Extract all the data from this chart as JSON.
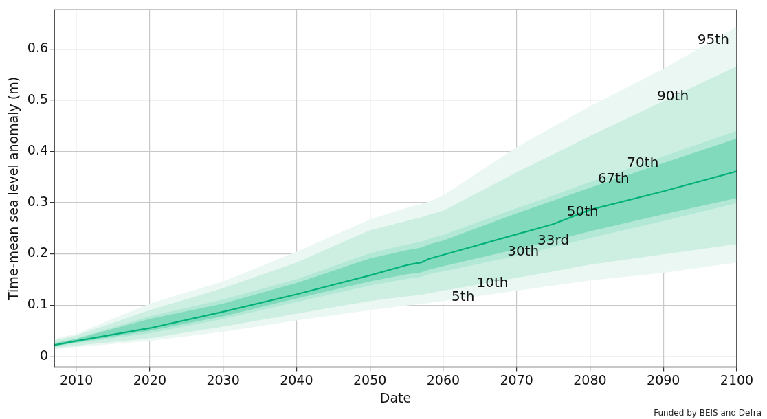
{
  "chart_data": {
    "type": "line",
    "xlabel": "Date",
    "ylabel": "Time-mean sea level anomaly (m)",
    "x": [
      2007,
      2010,
      2020,
      2030,
      2040,
      2050,
      2055,
      2057,
      2058,
      2060,
      2070,
      2075,
      2080,
      2090,
      2100
    ],
    "xlim": [
      2007,
      2100
    ],
    "xticks": [
      2010,
      2020,
      2030,
      2040,
      2050,
      2060,
      2070,
      2080,
      2090,
      2100
    ],
    "ylim": [
      -0.021,
      0.676
    ],
    "yticks": [
      0.0,
      0.1,
      0.2,
      0.3,
      0.4,
      0.5,
      0.6
    ],
    "grid": true,
    "legend": false,
    "marker": "none",
    "line_style": "solid",
    "series": [
      {
        "type": "area",
        "color": "#ebf7f2",
        "x": [
          2007,
          2010,
          2020,
          2030,
          2040,
          2050,
          2055,
          2057,
          2058,
          2060,
          2070,
          2075,
          2080,
          2090,
          2100,
          2100,
          2090,
          2080,
          2075,
          2070,
          2060,
          2058,
          2057,
          2055,
          2050,
          2040,
          2030,
          2020,
          2010,
          2007
        ],
        "values": [
          0.034,
          0.044,
          0.103,
          0.146,
          0.204,
          0.267,
          0.29,
          0.297,
          0.302,
          0.314,
          0.408,
          0.448,
          0.488,
          0.561,
          0.643,
          0.183,
          0.163,
          0.148,
          0.138,
          0.128,
          0.108,
          0.104,
          0.102,
          0.099,
          0.09,
          0.07,
          0.048,
          0.03,
          0.018,
          0.014
        ]
      },
      {
        "type": "area",
        "color": "#ccefe2",
        "x": [
          2007,
          2010,
          2020,
          2030,
          2040,
          2050,
          2055,
          2057,
          2058,
          2060,
          2070,
          2075,
          2080,
          2090,
          2100,
          2100,
          2090,
          2080,
          2075,
          2070,
          2060,
          2058,
          2057,
          2055,
          2050,
          2040,
          2030,
          2020,
          2010,
          2007
        ],
        "values": [
          0.031,
          0.041,
          0.09,
          0.133,
          0.183,
          0.246,
          0.264,
          0.271,
          0.276,
          0.284,
          0.359,
          0.394,
          0.43,
          0.498,
          0.566,
          0.219,
          0.199,
          0.179,
          0.166,
          0.153,
          0.128,
          0.123,
          0.12,
          0.117,
          0.108,
          0.083,
          0.058,
          0.035,
          0.021,
          0.016
        ]
      },
      {
        "type": "area",
        "color": "#b3e8d6",
        "x": [
          2007,
          2010,
          2020,
          2030,
          2040,
          2050,
          2055,
          2057,
          2058,
          2060,
          2070,
          2075,
          2080,
          2090,
          2100,
          2100,
          2090,
          2080,
          2075,
          2070,
          2060,
          2058,
          2057,
          2055,
          2050,
          2040,
          2030,
          2020,
          2010,
          2007
        ],
        "values": [
          0.026,
          0.035,
          0.078,
          0.111,
          0.15,
          0.201,
          0.218,
          0.223,
          0.229,
          0.237,
          0.289,
          0.314,
          0.34,
          0.39,
          0.44,
          0.299,
          0.264,
          0.231,
          0.213,
          0.196,
          0.166,
          0.16,
          0.155,
          0.151,
          0.138,
          0.106,
          0.073,
          0.045,
          0.026,
          0.019
        ]
      },
      {
        "type": "area",
        "color": "#80dabb",
        "x": [
          2007,
          2010,
          2020,
          2030,
          2040,
          2050,
          2055,
          2057,
          2058,
          2060,
          2070,
          2075,
          2080,
          2090,
          2100,
          2100,
          2090,
          2080,
          2075,
          2070,
          2060,
          2058,
          2057,
          2055,
          2050,
          2040,
          2030,
          2020,
          2010,
          2007
        ],
        "values": [
          0.025,
          0.034,
          0.073,
          0.103,
          0.143,
          0.191,
          0.207,
          0.212,
          0.218,
          0.226,
          0.279,
          0.304,
          0.329,
          0.377,
          0.425,
          0.309,
          0.277,
          0.244,
          0.226,
          0.209,
          0.176,
          0.169,
          0.164,
          0.16,
          0.146,
          0.113,
          0.078,
          0.05,
          0.027,
          0.02
        ]
      },
      {
        "color": "#00b07a",
        "values": [
          0.022,
          0.03,
          0.055,
          0.087,
          0.121,
          0.158,
          0.178,
          0.183,
          0.19,
          0.198,
          0.238,
          0.258,
          0.286,
          0.322,
          0.361
        ]
      }
    ],
    "annotations": [
      {
        "text": "95th",
        "x": 2096.8,
        "y": 0.617
      },
      {
        "text": "90th",
        "x": 2091.3,
        "y": 0.507
      },
      {
        "text": "70th",
        "x": 2087.2,
        "y": 0.376
      },
      {
        "text": "67th",
        "x": 2083.2,
        "y": 0.346
      },
      {
        "text": "50th",
        "x": 2079.0,
        "y": 0.281
      },
      {
        "text": "33rd",
        "x": 2075.0,
        "y": 0.225
      },
      {
        "text": "30th",
        "x": 2070.9,
        "y": 0.204
      },
      {
        "text": "10th",
        "x": 2066.7,
        "y": 0.142
      },
      {
        "text": "5th",
        "x": 2062.7,
        "y": 0.115
      },
      "Funded by BEIS and Defra"
    ]
  }
}
